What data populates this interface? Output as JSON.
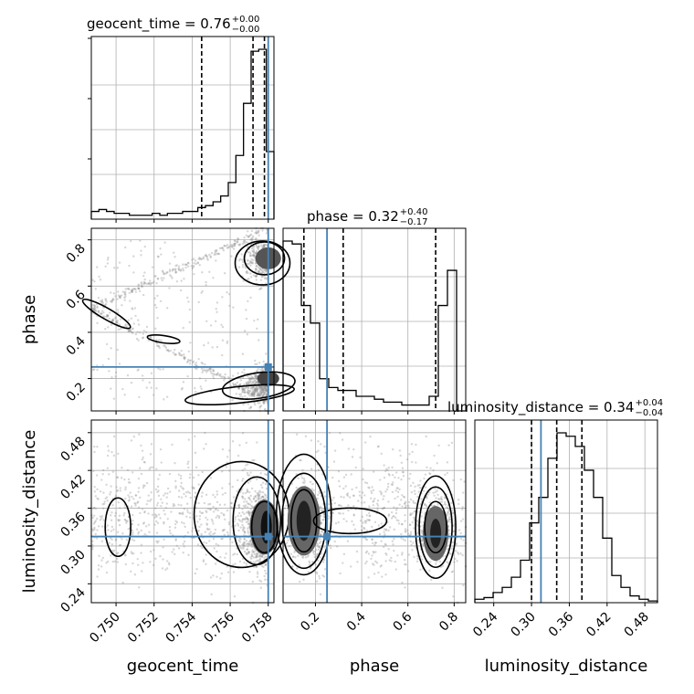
{
  "colors": {
    "truth": "#4682b4",
    "hist": "#000000",
    "grid": "#b0b0b0",
    "scatter": "#8c8c8c"
  },
  "chart_data": {
    "type": "corner",
    "parameters": [
      "geocent_time",
      "phase",
      "luminosity_distance"
    ],
    "truths": {
      "geocent_time": 0.758,
      "phase": 0.25,
      "luminosity_distance": 0.315
    },
    "ranges": {
      "geocent_time": [
        0.7487,
        0.7583
      ],
      "phase": [
        0.06,
        0.85
      ],
      "luminosity_distance": [
        0.21,
        0.5
      ]
    },
    "ticks": {
      "geocent_time": [
        0.75,
        0.752,
        0.754,
        0.756,
        0.758
      ],
      "phase": [
        0.2,
        0.4,
        0.6,
        0.8
      ],
      "luminosity_distance": [
        0.24,
        0.3,
        0.36,
        0.42,
        0.48
      ]
    },
    "tick_labels": {
      "geocent_time": [
        "0.750",
        "0.752",
        "0.754",
        "0.756",
        "0.758"
      ],
      "phase": [
        "0.2",
        "0.4",
        "0.6",
        "0.8"
      ],
      "luminosity_distance": [
        "0.24",
        "0.30",
        "0.36",
        "0.42",
        "0.48"
      ]
    },
    "axis_labels": {
      "geocent_time": "geocent_time",
      "phase": "phase",
      "luminosity_distance": "luminosity_distance"
    },
    "titles": [
      {
        "param": "geocent_time",
        "text": "geocent_time = 0.76",
        "plus": "+0.00",
        "minus": "−0.00"
      },
      {
        "param": "phase",
        "text": "phase = 0.32",
        "plus": "+0.40",
        "minus": "−0.17"
      },
      {
        "param": "luminosity_distance",
        "text": "luminosity_distance = 0.34",
        "plus": "+0.04",
        "minus": "−0.04"
      }
    ],
    "quantiles": {
      "geocent_time": [
        0.7545,
        0.7572,
        0.7578
      ],
      "phase": [
        0.15,
        0.32,
        0.72
      ],
      "luminosity_distance": [
        0.3,
        0.34,
        0.38
      ]
    },
    "histograms": {
      "geocent_time": [
        4,
        5,
        4,
        3,
        3,
        2,
        2,
        2,
        3,
        2,
        3,
        3,
        4,
        4,
        6,
        7,
        9,
        12,
        19,
        33,
        60,
        87,
        88,
        35
      ],
      "phase": [
        58,
        57,
        36,
        30,
        11,
        8,
        7,
        7,
        5,
        5,
        4,
        3,
        3,
        2,
        2,
        2,
        5,
        36,
        48,
        0
      ],
      "luminosity_distance": [
        2,
        3,
        6,
        9,
        15,
        25,
        47,
        62,
        85,
        100,
        98,
        92,
        78,
        62,
        38,
        16,
        9,
        4,
        2,
        1
      ]
    }
  }
}
